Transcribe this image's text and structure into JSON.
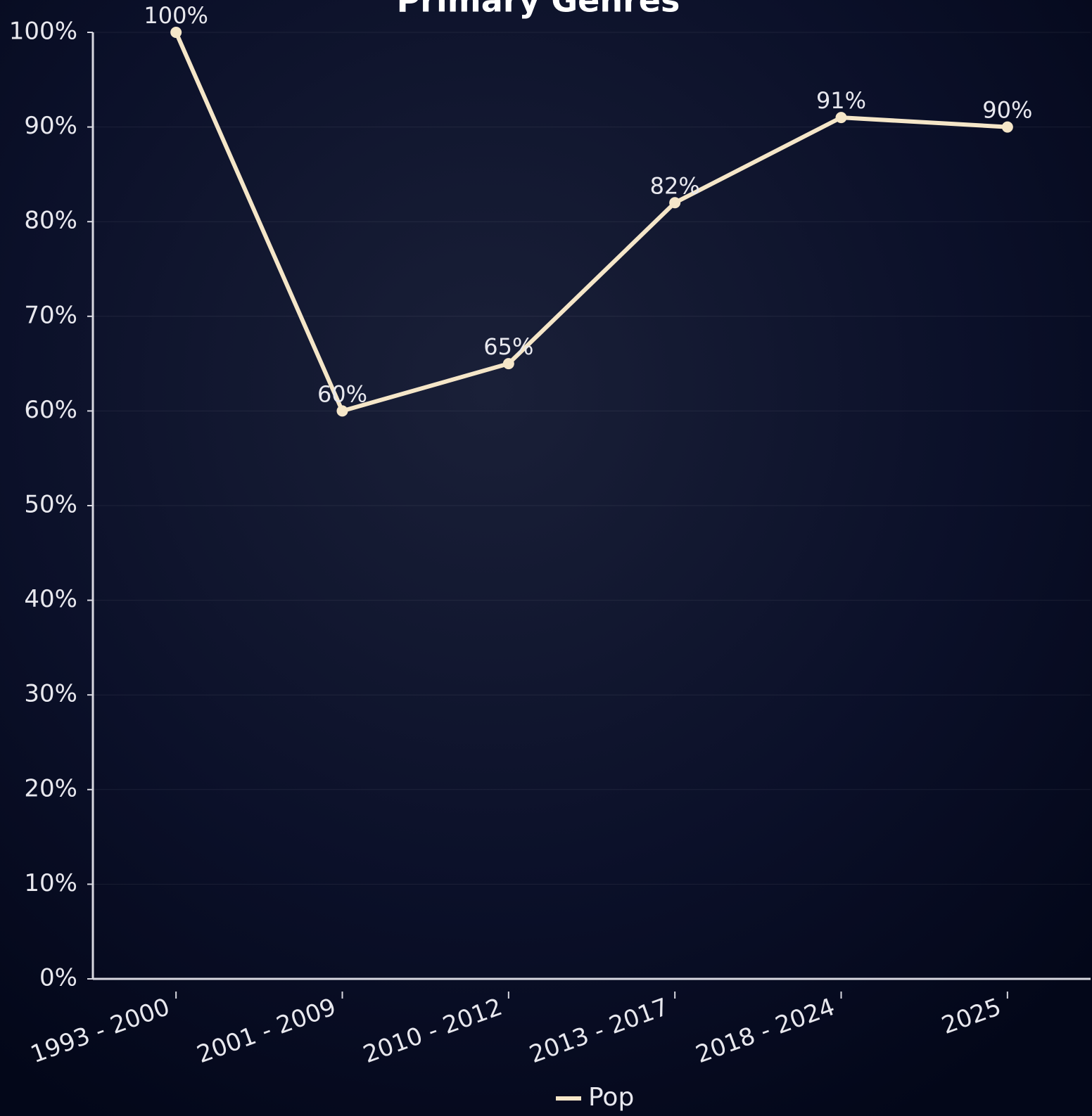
{
  "chart_data": {
    "type": "line",
    "title": "Primary Genres",
    "categories": [
      "1993 - 2000",
      "2001 - 2009",
      "2010 - 2012",
      "2013 - 2017",
      "2018 - 2024",
      "2025"
    ],
    "series": [
      {
        "name": "Pop",
        "color": "#f5e6c8",
        "values": [
          100,
          60,
          65,
          82,
          91,
          90
        ],
        "value_labels": [
          "100%",
          "60%",
          "65%",
          "82%",
          "91%",
          "90%"
        ]
      }
    ],
    "ylim": [
      0,
      100
    ],
    "yticks": [
      {
        "value": 0,
        "label": "0%"
      },
      {
        "value": 10,
        "label": "10%"
      },
      {
        "value": 20,
        "label": "20%"
      },
      {
        "value": 30,
        "label": "30%"
      },
      {
        "value": 40,
        "label": "40%"
      },
      {
        "value": 50,
        "label": "50%"
      },
      {
        "value": 60,
        "label": "60%"
      },
      {
        "value": 70,
        "label": "70%"
      },
      {
        "value": 80,
        "label": "80%"
      },
      {
        "value": 90,
        "label": "90%"
      },
      {
        "value": 100,
        "label": "100%"
      }
    ],
    "grid": true,
    "legend": "bottom"
  }
}
